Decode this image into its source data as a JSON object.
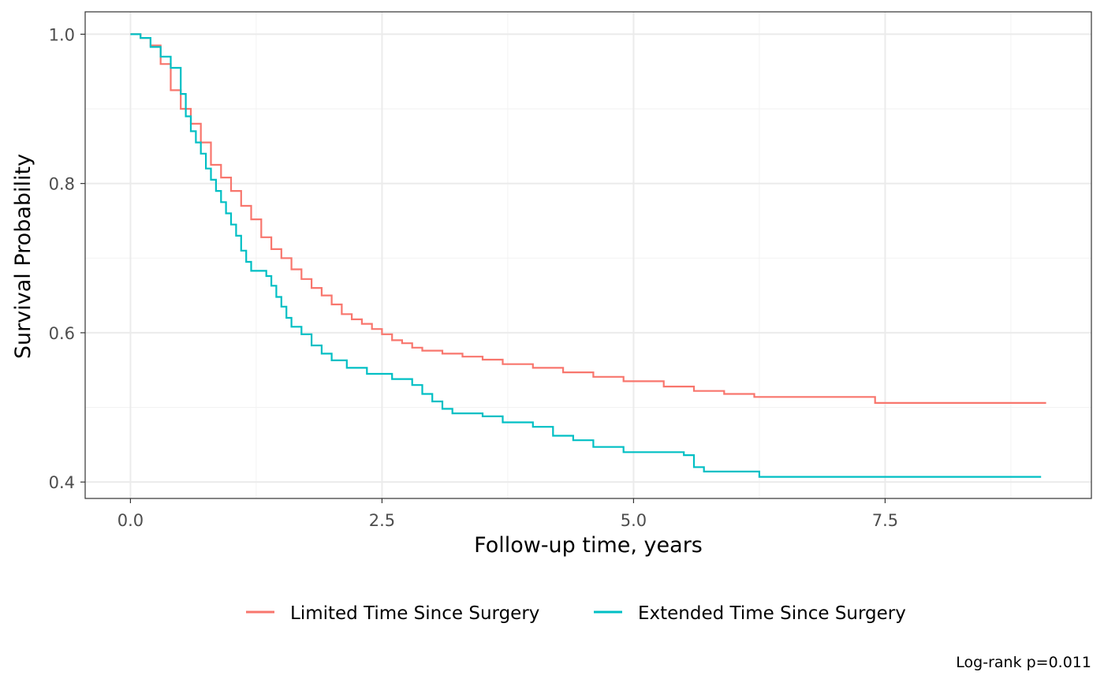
{
  "chart_data": {
    "type": "line",
    "subtype": "kaplan-meier step",
    "xlabel": "Follow-up time, years",
    "ylabel": "Survival Probability",
    "xlim": [
      -0.45,
      9.55
    ],
    "ylim": [
      0.378,
      1.03
    ],
    "x_ticks": [
      0.0,
      2.5,
      5.0,
      7.5
    ],
    "x_tick_labels": [
      "0.0",
      "2.5",
      "5.0",
      "7.5"
    ],
    "y_ticks": [
      0.4,
      0.6,
      0.8,
      1.0
    ],
    "y_tick_labels": [
      "0.4",
      "0.6",
      "0.8",
      "1.0"
    ],
    "grid": true,
    "legend_position": "bottom",
    "caption": "Log-rank p=0.011",
    "series": [
      {
        "name": "Limited Time Since Surgery",
        "color": "#F8766D",
        "points": [
          [
            0,
            1.0
          ],
          [
            0.1,
            0.995
          ],
          [
            0.2,
            0.985
          ],
          [
            0.3,
            0.96
          ],
          [
            0.4,
            0.925
          ],
          [
            0.5,
            0.9
          ],
          [
            0.6,
            0.88
          ],
          [
            0.7,
            0.855
          ],
          [
            0.8,
            0.825
          ],
          [
            0.9,
            0.808
          ],
          [
            1.0,
            0.79
          ],
          [
            1.1,
            0.77
          ],
          [
            1.2,
            0.752
          ],
          [
            1.3,
            0.728
          ],
          [
            1.4,
            0.712
          ],
          [
            1.5,
            0.7
          ],
          [
            1.6,
            0.685
          ],
          [
            1.7,
            0.672
          ],
          [
            1.8,
            0.66
          ],
          [
            1.9,
            0.65
          ],
          [
            2.0,
            0.638
          ],
          [
            2.1,
            0.625
          ],
          [
            2.2,
            0.618
          ],
          [
            2.3,
            0.612
          ],
          [
            2.4,
            0.605
          ],
          [
            2.5,
            0.598
          ],
          [
            2.6,
            0.59
          ],
          [
            2.7,
            0.586
          ],
          [
            2.8,
            0.58
          ],
          [
            2.9,
            0.576
          ],
          [
            3.1,
            0.572
          ],
          [
            3.3,
            0.568
          ],
          [
            3.5,
            0.564
          ],
          [
            3.7,
            0.558
          ],
          [
            4.0,
            0.553
          ],
          [
            4.3,
            0.547
          ],
          [
            4.6,
            0.541
          ],
          [
            4.9,
            0.535
          ],
          [
            5.3,
            0.528
          ],
          [
            5.6,
            0.522
          ],
          [
            5.9,
            0.518
          ],
          [
            6.2,
            0.514
          ],
          [
            7.4,
            0.514
          ],
          [
            7.4,
            0.506
          ],
          [
            9.1,
            0.506
          ]
        ]
      },
      {
        "name": "Extended Time Since Surgery",
        "color": "#00BFC4",
        "points": [
          [
            0,
            1.0
          ],
          [
            0.1,
            0.995
          ],
          [
            0.2,
            0.983
          ],
          [
            0.3,
            0.97
          ],
          [
            0.4,
            0.955
          ],
          [
            0.5,
            0.92
          ],
          [
            0.55,
            0.89
          ],
          [
            0.6,
            0.87
          ],
          [
            0.65,
            0.855
          ],
          [
            0.7,
            0.84
          ],
          [
            0.75,
            0.82
          ],
          [
            0.8,
            0.805
          ],
          [
            0.85,
            0.79
          ],
          [
            0.9,
            0.775
          ],
          [
            0.95,
            0.76
          ],
          [
            1.0,
            0.745
          ],
          [
            1.05,
            0.73
          ],
          [
            1.1,
            0.71
          ],
          [
            1.15,
            0.695
          ],
          [
            1.2,
            0.683
          ],
          [
            1.35,
            0.676
          ],
          [
            1.4,
            0.663
          ],
          [
            1.45,
            0.648
          ],
          [
            1.5,
            0.635
          ],
          [
            1.55,
            0.62
          ],
          [
            1.6,
            0.608
          ],
          [
            1.7,
            0.598
          ],
          [
            1.8,
            0.583
          ],
          [
            1.9,
            0.572
          ],
          [
            2.0,
            0.563
          ],
          [
            2.15,
            0.553
          ],
          [
            2.35,
            0.545
          ],
          [
            2.6,
            0.538
          ],
          [
            2.8,
            0.53
          ],
          [
            2.9,
            0.518
          ],
          [
            3.0,
            0.508
          ],
          [
            3.1,
            0.498
          ],
          [
            3.2,
            0.492
          ],
          [
            3.5,
            0.488
          ],
          [
            3.7,
            0.48
          ],
          [
            4.0,
            0.474
          ],
          [
            4.2,
            0.462
          ],
          [
            4.4,
            0.456
          ],
          [
            4.6,
            0.447
          ],
          [
            4.9,
            0.44
          ],
          [
            5.5,
            0.436
          ],
          [
            5.6,
            0.42
          ],
          [
            5.7,
            0.414
          ],
          [
            6.25,
            0.414
          ],
          [
            6.25,
            0.407
          ],
          [
            9.05,
            0.407
          ]
        ]
      }
    ]
  }
}
